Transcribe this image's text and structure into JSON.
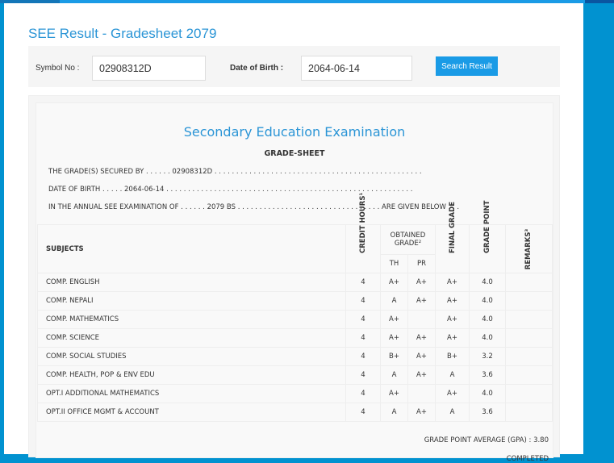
{
  "page_title": "SEE Result - Gradesheet 2079",
  "form": {
    "symbol_label": "Symbol No :",
    "symbol_value": "02908312D",
    "dob_label": "Date of Birth :",
    "dob_value": "2064-06-14",
    "search_label": "Search Result"
  },
  "sheet": {
    "heading": "Secondary Education Examination",
    "subheading": "GRADE-SHEET",
    "line1": "THE GRADE(S) SECURED BY . . . . . . 02908312D . . . . . . . . . . . . . . . . . . . . . . . . . . . . . . . . . . . . . . . . . . . . . . . .",
    "line2": "DATE OF BIRTH . . . . . 2064-06-14 . . . . . . . . . . . . . . . . . . . . . . . . . . . . . . . . . . . . . . . . . . . . . . . . . . . . . . . . .",
    "line3": "IN THE ANNUAL SEE EXAMINATION OF . . . . . . 2079 BS . . . . . . . . . . . . . . . . . . . . . . . . . . . . . . . . . ARE GIVEN BELOW . . .",
    "headers": {
      "subjects": "SUBJECTS",
      "credit": "CREDIT HOURS¹",
      "obtained": "OBTAINED GRADE²",
      "th": "TH",
      "pr": "PR",
      "final": "FINAL GRADE",
      "point": "GRADE POINT",
      "remarks": "REMARKS³"
    },
    "rows": [
      {
        "subject": "COMP. ENGLISH",
        "credit": "4",
        "th": "A+",
        "pr": "A+",
        "final": "A+",
        "point": "4.0"
      },
      {
        "subject": "COMP. NEPALI",
        "credit": "4",
        "th": "A",
        "pr": "A+",
        "final": "A+",
        "point": "4.0"
      },
      {
        "subject": "COMP. MATHEMATICS",
        "credit": "4",
        "th": "A+",
        "pr": "",
        "final": "A+",
        "point": "4.0"
      },
      {
        "subject": "COMP. SCIENCE",
        "credit": "4",
        "th": "A+",
        "pr": "A+",
        "final": "A+",
        "point": "4.0"
      },
      {
        "subject": "COMP. SOCIAL STUDIES",
        "credit": "4",
        "th": "B+",
        "pr": "A+",
        "final": "B+",
        "point": "3.2"
      },
      {
        "subject": "COMP. HEALTH, POP & ENV EDU",
        "credit": "4",
        "th": "A",
        "pr": "A+",
        "final": "A",
        "point": "3.6"
      },
      {
        "subject": "OPT.I ADDITIONAL MATHEMATICS",
        "credit": "4",
        "th": "A+",
        "pr": "",
        "final": "A+",
        "point": "4.0"
      },
      {
        "subject": "OPT.II OFFICE MGMT & ACCOUNT",
        "credit": "4",
        "th": "A",
        "pr": "A+",
        "final": "A",
        "point": "3.6"
      }
    ],
    "gpa": "GRADE POINT AVERAGE (GPA) : 3.80",
    "completed": "COMPLETED"
  }
}
